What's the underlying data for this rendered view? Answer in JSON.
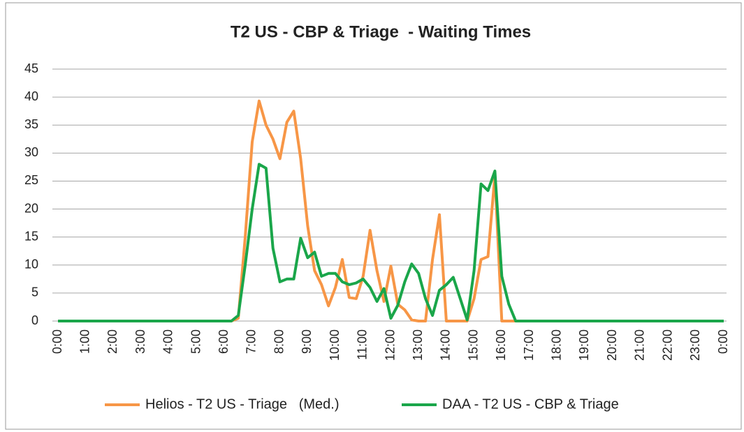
{
  "chart_data": {
    "type": "line",
    "title": "T2 US - CBP & Triage  - Waiting Times",
    "categories": [
      "0:00",
      null,
      null,
      null,
      "1:00",
      null,
      null,
      null,
      "2:00",
      null,
      null,
      null,
      "3:00",
      null,
      null,
      null,
      "4:00",
      null,
      null,
      null,
      "5:00",
      null,
      null,
      null,
      "6:00",
      null,
      null,
      null,
      "7:00",
      null,
      null,
      null,
      "8:00",
      null,
      null,
      null,
      "9:00",
      null,
      null,
      null,
      "10:00",
      null,
      null,
      null,
      "11:00",
      null,
      null,
      null,
      "12:00",
      null,
      null,
      null,
      "13:00",
      null,
      null,
      null,
      "14:00",
      null,
      null,
      null,
      "15:00",
      null,
      null,
      null,
      "16:00",
      null,
      null,
      null,
      "17:00",
      null,
      null,
      null,
      "18:00",
      null,
      null,
      null,
      "19:00",
      null,
      null,
      null,
      "20:00",
      null,
      null,
      null,
      "21:00",
      null,
      null,
      null,
      "22:00",
      null,
      null,
      null,
      "23:00",
      null,
      null,
      null,
      "0:00"
    ],
    "series": [
      {
        "name": "Helios - T2 US - Triage   (Med.)",
        "color": "#f79646",
        "values": [
          0,
          0,
          0,
          0,
          0,
          0,
          0,
          0,
          0,
          0,
          0,
          0,
          0,
          0,
          0,
          0,
          0,
          0,
          0,
          0,
          0,
          0,
          0,
          0,
          0,
          0,
          0.5,
          15,
          32,
          39.3,
          35,
          32.5,
          29,
          35.5,
          37.5,
          29,
          17,
          9,
          6.5,
          2.7,
          6,
          11,
          4.2,
          4,
          8,
          16.2,
          9,
          3.5,
          9.8,
          3,
          2,
          0.2,
          0,
          0,
          11,
          19,
          0,
          0,
          0,
          0,
          4,
          11,
          11.5,
          26,
          0,
          0,
          0,
          0,
          0,
          0,
          0,
          0,
          0,
          0,
          0,
          0,
          0,
          0,
          0,
          0,
          0,
          0,
          0,
          0,
          0,
          0,
          0,
          0,
          0,
          0,
          0,
          0,
          0,
          0,
          0,
          0,
          0
        ]
      },
      {
        "name": "DAA - T2 US - CBP & Triage",
        "color": "#1aa64a",
        "values": [
          0,
          0,
          0,
          0,
          0,
          0,
          0,
          0,
          0,
          0,
          0,
          0,
          0,
          0,
          0,
          0,
          0,
          0,
          0,
          0,
          0,
          0,
          0,
          0,
          0,
          0,
          1,
          10,
          20,
          28,
          27.3,
          13,
          7,
          7.5,
          7.5,
          14.8,
          11.3,
          12.3,
          8,
          8.5,
          8.5,
          7,
          6.5,
          6.8,
          7.5,
          6,
          3.5,
          5.8,
          0.5,
          2.8,
          7,
          10.2,
          8.5,
          4,
          1,
          5.5,
          6.5,
          7.8,
          4,
          0.2,
          9,
          24.5,
          23.3,
          26.8,
          8,
          3,
          0,
          0,
          0,
          0,
          0,
          0,
          0,
          0,
          0,
          0,
          0,
          0,
          0,
          0,
          0,
          0,
          0,
          0,
          0,
          0,
          0,
          0,
          0,
          0,
          0,
          0,
          0,
          0,
          0,
          0,
          0
        ]
      }
    ],
    "ylim": [
      0,
      45
    ],
    "yticks": [
      0,
      5,
      10,
      15,
      20,
      25,
      30,
      35,
      40,
      45
    ],
    "grid": true,
    "legend": "bottom"
  }
}
